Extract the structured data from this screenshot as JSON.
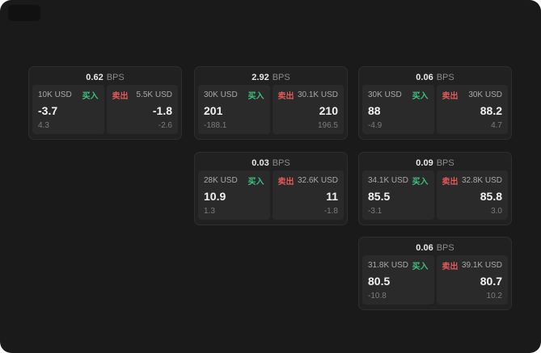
{
  "labels": {
    "bps": "BPS",
    "buy": "买入",
    "sell": "卖出"
  },
  "cards": [
    {
      "bps": "0.62",
      "bid": {
        "amount": "10K USD",
        "price": "-3.7",
        "sub": "4.3"
      },
      "ask": {
        "amount": "5.5K USD",
        "price": "-1.8",
        "sub": "-2.6"
      }
    },
    {
      "bps": "2.92",
      "bid": {
        "amount": "30K USD",
        "price": "201",
        "sub": "-188.1"
      },
      "ask": {
        "amount": "30.1K USD",
        "price": "210",
        "sub": "196.5"
      }
    },
    {
      "bps": "0.06",
      "bid": {
        "amount": "30K USD",
        "price": "88",
        "sub": "-4.9"
      },
      "ask": {
        "amount": "30K USD",
        "price": "88.2",
        "sub": "4.7"
      }
    },
    {
      "bps": "0.03",
      "bid": {
        "amount": "28K USD",
        "price": "10.9",
        "sub": "1.3"
      },
      "ask": {
        "amount": "32.6K USD",
        "price": "11",
        "sub": "-1.8"
      }
    },
    {
      "bps": "0.09",
      "bid": {
        "amount": "34.1K USD",
        "price": "85.5",
        "sub": "-3.1"
      },
      "ask": {
        "amount": "32.8K USD",
        "price": "85.8",
        "sub": "3.0"
      }
    },
    {
      "bps": "0.06",
      "bid": {
        "amount": "31.8K USD",
        "price": "80.5",
        "sub": "-10.8"
      },
      "ask": {
        "amount": "39.1K USD",
        "price": "80.7",
        "sub": "10.2"
      }
    }
  ]
}
